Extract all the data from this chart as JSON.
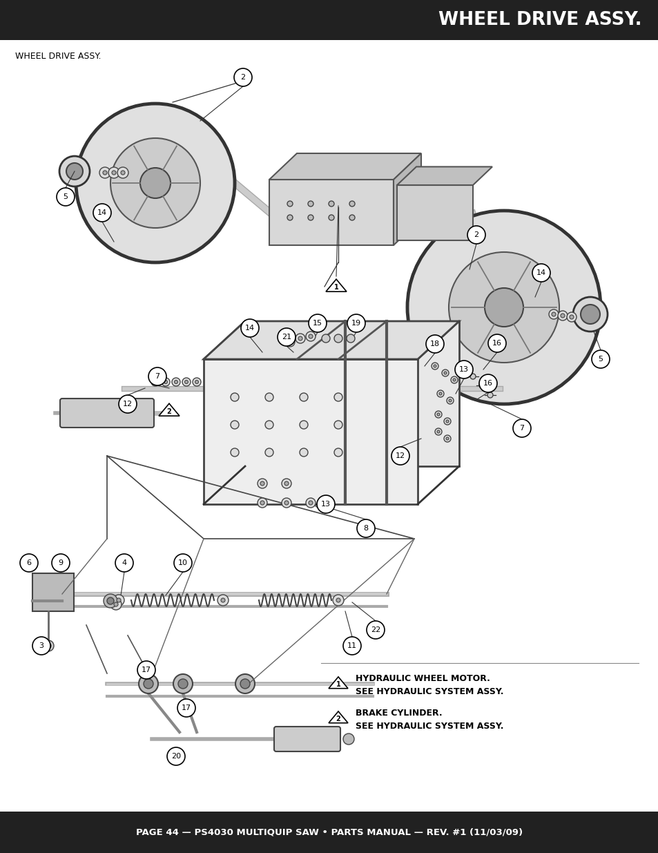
{
  "page_bg_color": "#ffffff",
  "header_bg_color": "#212121",
  "footer_bg_color": "#212121",
  "header_text": "WHEEL DRIVE ASSY.",
  "header_text_color": "#ffffff",
  "footer_text": "PAGE 44 — PS4030 MULTIQUIP SAW • PARTS MANUAL — REV. #1 (11/03/09)",
  "footer_text_color": "#ffffff",
  "subtitle_text": "WHEEL DRIVE ASSY.",
  "subtitle_color": "#000000",
  "note1_line1": "HYDRAULIC WHEEL MOTOR.",
  "note1_line2": "SEE HYDRAULIC SYSTEM ASSY.",
  "note2_line1": "BRAKE CYLINDER.",
  "note2_line2": "SEE HYDRAULIC SYSTEM ASSY.",
  "line_color": "#333333",
  "part_color": "#555555",
  "figsize": [
    9.54,
    12.35
  ],
  "dpi": 100
}
